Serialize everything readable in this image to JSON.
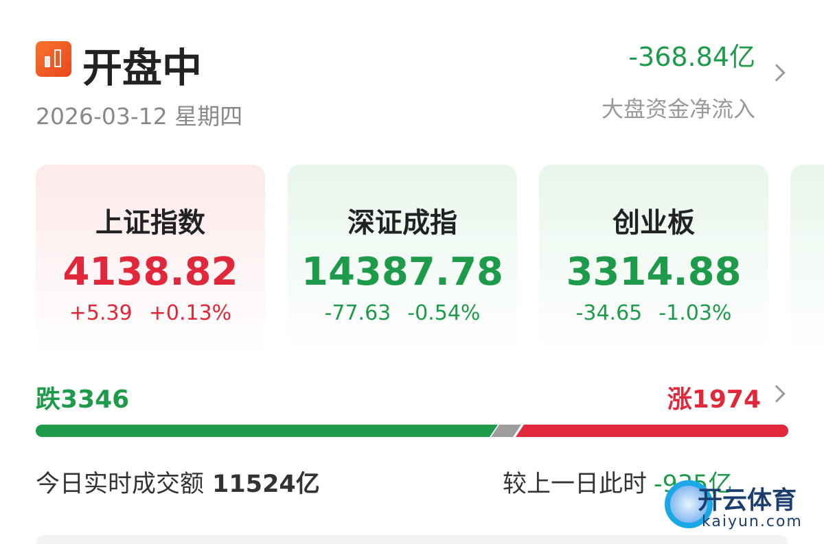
{
  "header": {
    "title": "开盘中",
    "date": "2026-03-12 星期四",
    "net_flow": "-368.84亿",
    "net_flow_label": "大盘资金净流入"
  },
  "indices": [
    {
      "name": "上证指数",
      "value": "4138.82",
      "change": "+5.39",
      "pct": "+0.13%",
      "trend": "up"
    },
    {
      "name": "深证成指",
      "value": "14387.78",
      "change": "-77.63",
      "pct": "-0.54%",
      "trend": "down"
    },
    {
      "name": "创业板",
      "value": "3314.88",
      "change": "-34.65",
      "pct": "-1.03%",
      "trend": "down"
    }
  ],
  "breadth": {
    "fall_label": "跌3346",
    "rise_label": "涨1974",
    "fall": 3346,
    "rise": 1974,
    "colors": {
      "fall": "#1e9b4a",
      "flat": "#9e9e9e",
      "rise": "#e0283a"
    }
  },
  "turnover": {
    "label": "今日实时成交额",
    "value": "11524亿",
    "compare_label": "较上一日此时",
    "compare_value": "-935亿"
  },
  "watermark": {
    "text": "开云体育",
    "domain": "kaiyun.com"
  }
}
